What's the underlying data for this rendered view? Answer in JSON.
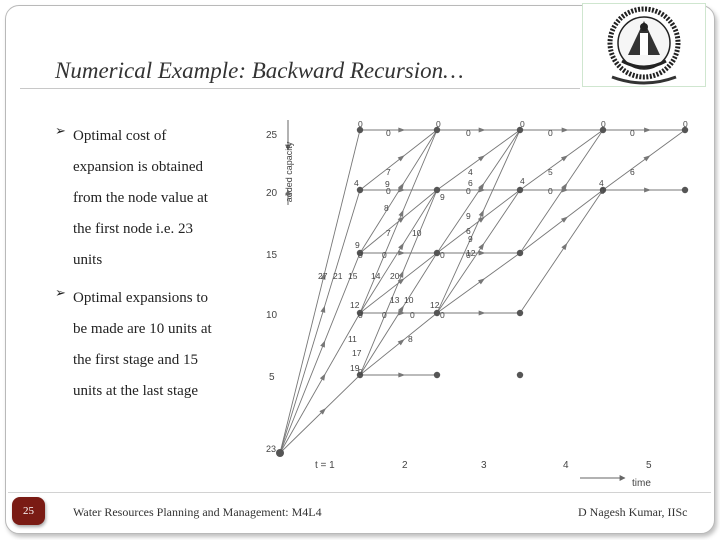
{
  "slide": {
    "title": "Numerical Example: Backward Recursion…",
    "bullets": [
      {
        "lines": [
          "Optimal cost of",
          "expansion is obtained",
          "from the node value at",
          "the first node i.e. 23",
          "units"
        ]
      },
      {
        "lines": [
          "Optimal expansions to",
          "be made are 10 units at",
          "the first stage and 15",
          "units at the last stage"
        ]
      }
    ],
    "footer": {
      "page_number": "25",
      "course": "Water Resources Planning and Management: M4L4",
      "author": "D Nagesh Kumar, IISc"
    },
    "logo_icon": "iisc-crest-icon"
  },
  "diagram": {
    "y_axis_label": "added capacity",
    "x_axis_label": "time",
    "y_ticks": [
      "25",
      "20",
      "15",
      "10",
      "5"
    ],
    "x_ticks": [
      "t = 1",
      "2",
      "3",
      "4",
      "5"
    ],
    "start_label": "23",
    "colors": {
      "line": "#777777",
      "node": "#555555",
      "text": "#444444"
    },
    "labels": [
      "0",
      "0",
      "0",
      "0",
      "0",
      "0",
      "0",
      "0",
      "0",
      "0",
      "0",
      "0",
      "0",
      "0",
      "0",
      "0",
      "0",
      "0",
      "0",
      "0",
      "0",
      "0",
      "4",
      "7",
      "8",
      "9",
      "9",
      "9",
      "9",
      "7",
      "10",
      "9",
      "12",
      "12",
      "13",
      "10",
      "12",
      "8",
      "11",
      "17",
      "19",
      "4",
      "6",
      "6",
      "5",
      "4",
      "4",
      "6",
      "27",
      "21",
      "15",
      "14",
      "20"
    ]
  }
}
